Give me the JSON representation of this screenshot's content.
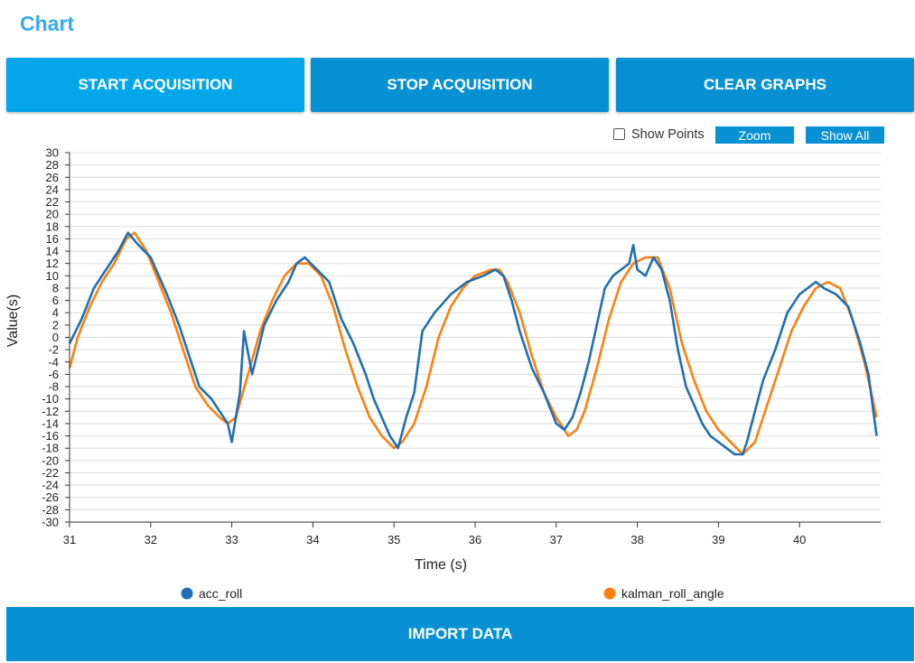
{
  "header": {
    "title": "Chart"
  },
  "toolbar": {
    "start_label": "START ACQUISITION",
    "stop_label": "STOP ACQUISITION",
    "clear_label": "CLEAR GRAPHS"
  },
  "chart_controls": {
    "show_points_label": "Show Points",
    "show_points_checked": false,
    "zoom_label": "Zoom",
    "show_all_label": "Show All"
  },
  "footer": {
    "import_label": "IMPORT DATA"
  },
  "colors": {
    "accent": "#04a6ea",
    "button": "#0891d2",
    "acc_roll": "#1f6fb2",
    "kalman": "#ff7f0e"
  },
  "chart_data": {
    "type": "line",
    "title": "",
    "xlabel": "Time (s)",
    "ylabel": "Value(s)",
    "xlim": [
      31,
      41
    ],
    "ylim": [
      -30,
      30
    ],
    "x_ticks": [
      31,
      32,
      33,
      34,
      35,
      36,
      37,
      38,
      39,
      40
    ],
    "y_ticks": [
      -30,
      -28,
      -26,
      -24,
      -22,
      -20,
      -18,
      -16,
      -14,
      -12,
      -10,
      -8,
      -6,
      -4,
      -2,
      0,
      2,
      4,
      6,
      8,
      10,
      12,
      14,
      16,
      18,
      20,
      22,
      24,
      26,
      28,
      30
    ],
    "grid": true,
    "legend": "bottom",
    "series": [
      {
        "name": "acc_roll",
        "color": "#1f6fb2",
        "x": [
          31.0,
          31.15,
          31.3,
          31.45,
          31.6,
          31.72,
          31.85,
          32.0,
          32.1,
          32.2,
          32.35,
          32.5,
          32.6,
          32.75,
          32.85,
          32.95,
          33.0,
          33.1,
          33.15,
          33.25,
          33.4,
          33.55,
          33.7,
          33.8,
          33.9,
          34.05,
          34.2,
          34.35,
          34.5,
          34.65,
          34.75,
          34.85,
          34.95,
          35.05,
          35.15,
          35.25,
          35.35,
          35.5,
          35.7,
          35.9,
          36.1,
          36.25,
          36.35,
          36.45,
          36.55,
          36.7,
          36.85,
          37.0,
          37.1,
          37.2,
          37.3,
          37.4,
          37.5,
          37.6,
          37.7,
          37.8,
          37.9,
          37.95,
          38.0,
          38.1,
          38.2,
          38.3,
          38.4,
          38.5,
          38.6,
          38.7,
          38.8,
          38.9,
          39.0,
          39.1,
          39.2,
          39.3,
          39.35,
          39.45,
          39.55,
          39.7,
          39.85,
          40.0,
          40.1,
          40.2,
          40.3,
          40.45,
          40.6,
          40.75,
          40.85,
          40.95
        ],
        "values": [
          -1,
          3,
          8,
          11,
          14,
          17,
          15,
          13,
          10,
          7,
          2,
          -4,
          -8,
          -10,
          -12,
          -14,
          -17,
          -9,
          1,
          -6,
          2,
          6,
          9,
          12,
          13,
          11,
          9,
          3,
          -1,
          -6,
          -10,
          -13,
          -16,
          -18,
          -13,
          -9,
          1,
          4,
          7,
          9,
          10,
          11,
          10,
          6,
          1,
          -5,
          -9,
          -14,
          -15,
          -13,
          -9,
          -4,
          2,
          8,
          10,
          11,
          12,
          15,
          11,
          10,
          13,
          11,
          6,
          -2,
          -8,
          -11,
          -14,
          -16,
          -17,
          -18,
          -19,
          -19,
          -17,
          -12,
          -7,
          -2,
          4,
          7,
          8,
          9,
          8,
          7,
          5,
          -1,
          -6,
          -16
        ]
      },
      {
        "name": "kalman_roll_angle",
        "color": "#ff7f0e",
        "x": [
          31.0,
          31.1,
          31.25,
          31.4,
          31.55,
          31.7,
          31.8,
          31.95,
          32.1,
          32.25,
          32.4,
          32.55,
          32.7,
          32.85,
          32.95,
          33.05,
          33.2,
          33.35,
          33.5,
          33.65,
          33.8,
          33.95,
          34.1,
          34.25,
          34.4,
          34.55,
          34.7,
          34.85,
          35.0,
          35.1,
          35.25,
          35.4,
          35.55,
          35.7,
          35.85,
          36.0,
          36.2,
          36.3,
          36.4,
          36.55,
          36.7,
          36.85,
          37.0,
          37.15,
          37.25,
          37.35,
          37.5,
          37.65,
          37.8,
          37.95,
          38.1,
          38.25,
          38.4,
          38.55,
          38.7,
          38.85,
          39.0,
          39.15,
          39.3,
          39.45,
          39.6,
          39.75,
          39.9,
          40.05,
          40.2,
          40.35,
          40.5,
          40.65,
          40.8,
          40.95
        ],
        "values": [
          -5,
          0,
          5,
          9,
          12,
          16,
          17,
          14,
          9,
          4,
          -2,
          -8,
          -11,
          -13,
          -14,
          -13,
          -6,
          1,
          6,
          10,
          12,
          12,
          10,
          5,
          -2,
          -8,
          -13,
          -16,
          -18,
          -17,
          -14,
          -8,
          0,
          5,
          8,
          10,
          11,
          11,
          9,
          4,
          -3,
          -9,
          -13,
          -16,
          -15,
          -12,
          -5,
          3,
          9,
          12,
          13,
          13,
          8,
          -1,
          -7,
          -12,
          -15,
          -17,
          -19,
          -17,
          -11,
          -5,
          1,
          5,
          8,
          9,
          8,
          3,
          -4,
          -13
        ]
      }
    ]
  }
}
